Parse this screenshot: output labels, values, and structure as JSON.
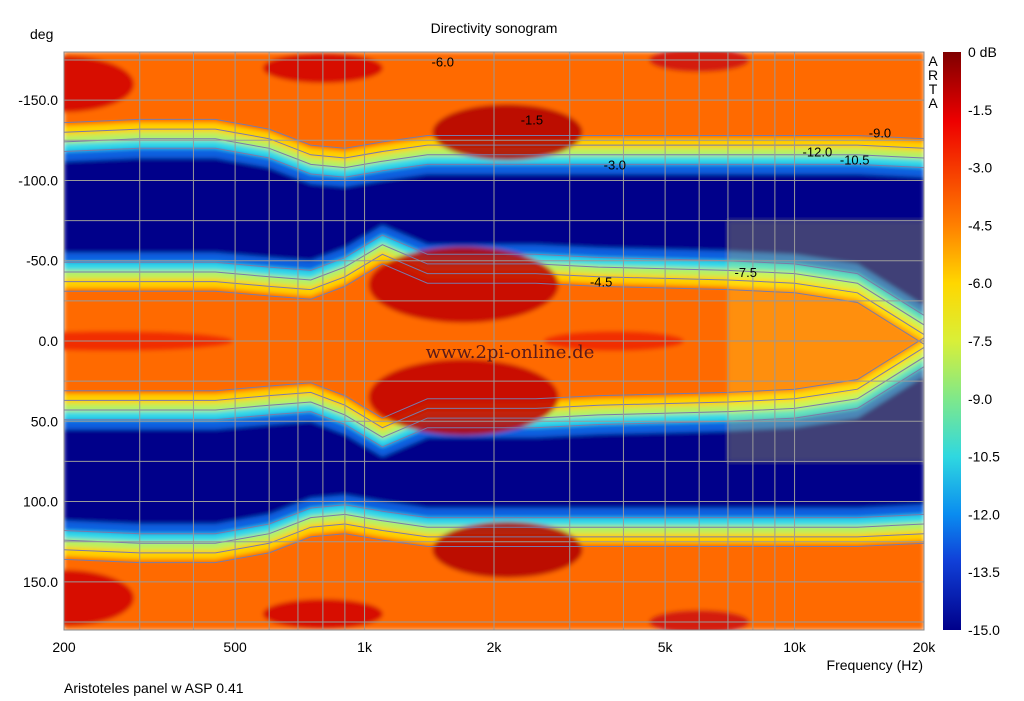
{
  "chart_data": {
    "type": "heatmap",
    "title": "Directivity sonogram",
    "footnote": "Aristoteles panel w ASP 0.41",
    "watermark": "www.2pi-online.de",
    "brand": [
      "A",
      "R",
      "T",
      "A"
    ],
    "xlabel": "Frequency (Hz)",
    "ylabel": "deg",
    "x_scale": "log",
    "xlim": [
      200,
      20000
    ],
    "ylim": [
      180,
      -180
    ],
    "grid": true,
    "x_ticks": [
      {
        "value": 200,
        "label": "200"
      },
      {
        "value": 500,
        "label": "500"
      },
      {
        "value": 1000,
        "label": "1k"
      },
      {
        "value": 2000,
        "label": "2k"
      },
      {
        "value": 5000,
        "label": "5k"
      },
      {
        "value": 10000,
        "label": "10k"
      },
      {
        "value": 20000,
        "label": "20k"
      }
    ],
    "y_ticks": [
      {
        "value": -150,
        "label": "-150.0"
      },
      {
        "value": -100,
        "label": "-100.0"
      },
      {
        "value": -50,
        "label": "-50.0"
      },
      {
        "value": 0,
        "label": "0.0"
      },
      {
        "value": 50,
        "label": "50.0"
      },
      {
        "value": 100,
        "label": "100.0"
      },
      {
        "value": 150,
        "label": "150.0"
      }
    ],
    "colorbar": {
      "range": [
        -15,
        0
      ],
      "ticks": [
        "0 dB",
        "-1.5",
        "-3.0",
        "-4.5",
        "-6.0",
        "-7.5",
        "-9.0",
        "-10.5",
        "-12.0",
        "-13.5",
        "-15.0"
      ]
    },
    "contour_labels": [
      {
        "text": "-6.0",
        "x": 1520,
        "y": -174
      },
      {
        "text": "-1.5",
        "x": 2450,
        "y": -138
      },
      {
        "text": "-3.0",
        "x": 3820,
        "y": -110
      },
      {
        "text": "-12.0",
        "x": 11300,
        "y": -118
      },
      {
        "text": "-9.0",
        "x": 15800,
        "y": -130
      },
      {
        "text": "-10.5",
        "x": 13800,
        "y": -113
      },
      {
        "text": "-4.5",
        "x": 3550,
        "y": -37
      },
      {
        "text": "-7.5",
        "x": 7700,
        "y": -43
      }
    ]
  }
}
